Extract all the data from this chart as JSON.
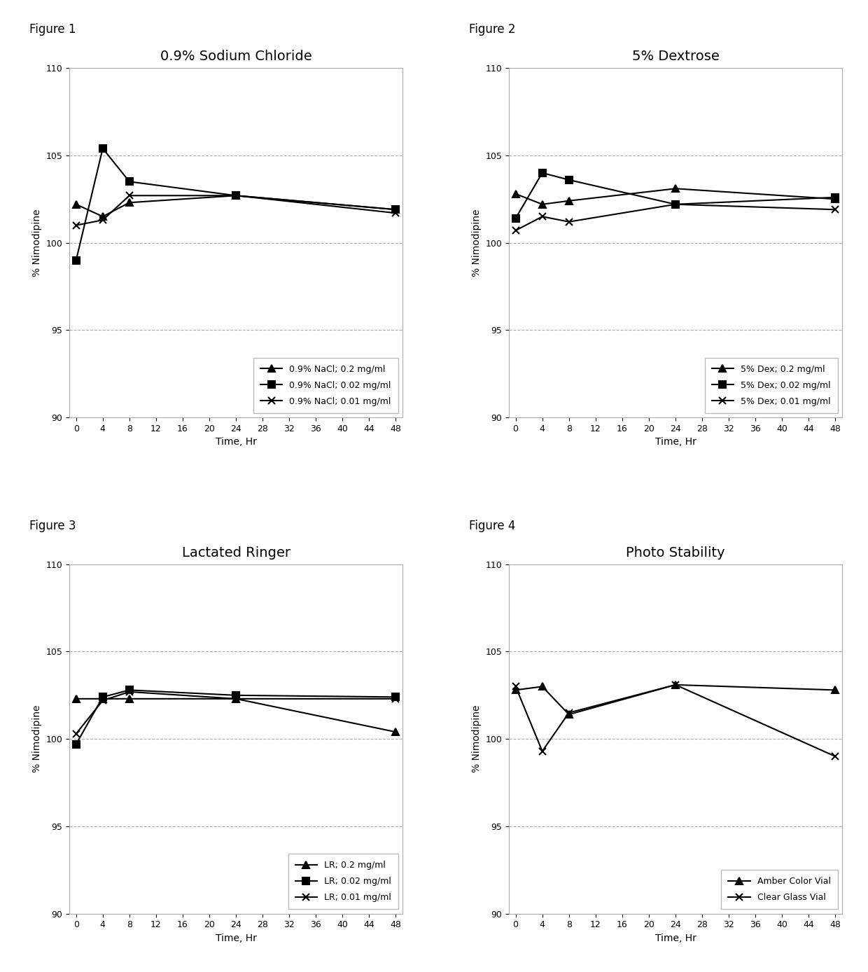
{
  "fig1": {
    "title": "0.9% Sodium Chloride",
    "series": [
      {
        "label": "0.9% NaCl; 0.2 mg/ml",
        "x": [
          0,
          4,
          8,
          24,
          48
        ],
        "y": [
          102.2,
          101.5,
          102.3,
          102.7,
          101.9
        ],
        "marker": "^",
        "linestyle": "-"
      },
      {
        "label": "0.9% NaCl; 0.02 mg/ml",
        "x": [
          0,
          4,
          8,
          24,
          48
        ],
        "y": [
          99.0,
          105.4,
          103.5,
          102.7,
          101.9
        ],
        "marker": "s",
        "linestyle": "-"
      },
      {
        "label": "0.9% NaCl; 0.01 mg/ml",
        "x": [
          0,
          4,
          8,
          24,
          48
        ],
        "y": [
          101.0,
          101.3,
          102.7,
          102.7,
          101.7
        ],
        "marker": "x",
        "linestyle": "-"
      }
    ]
  },
  "fig2": {
    "title": "5% Dextrose",
    "series": [
      {
        "label": "5% Dex; 0.2 mg/ml",
        "x": [
          0,
          4,
          8,
          24,
          48
        ],
        "y": [
          102.8,
          102.2,
          102.4,
          103.1,
          102.5
        ],
        "marker": "^",
        "linestyle": "-"
      },
      {
        "label": "5% Dex; 0.02 mg/ml",
        "x": [
          0,
          4,
          8,
          24,
          48
        ],
        "y": [
          101.4,
          104.0,
          103.6,
          102.2,
          102.6
        ],
        "marker": "s",
        "linestyle": "-"
      },
      {
        "label": "5% Dex; 0.01 mg/ml",
        "x": [
          0,
          4,
          8,
          24,
          48
        ],
        "y": [
          100.7,
          101.5,
          101.2,
          102.2,
          101.9
        ],
        "marker": "x",
        "linestyle": "-"
      }
    ]
  },
  "fig3": {
    "title": "Lactated Ringer",
    "series": [
      {
        "label": "LR; 0.2 mg/ml",
        "x": [
          0,
          4,
          8,
          24,
          48
        ],
        "y": [
          102.3,
          102.3,
          102.3,
          102.3,
          100.4
        ],
        "marker": "^",
        "linestyle": "-"
      },
      {
        "label": "LR; 0.02 mg/ml",
        "x": [
          0,
          4,
          8,
          24,
          48
        ],
        "y": [
          99.7,
          102.4,
          102.8,
          102.5,
          102.4
        ],
        "marker": "s",
        "linestyle": "-"
      },
      {
        "label": "LR; 0.01 mg/ml",
        "x": [
          0,
          4,
          8,
          24,
          48
        ],
        "y": [
          100.3,
          102.2,
          102.7,
          102.3,
          102.3
        ],
        "marker": "x",
        "linestyle": "-"
      }
    ]
  },
  "fig4": {
    "title": "Photo Stability",
    "series": [
      {
        "label": "Amber Color Vial",
        "x": [
          0,
          4,
          8,
          24,
          48
        ],
        "y": [
          102.8,
          103.0,
          101.4,
          103.1,
          102.8
        ],
        "marker": "^",
        "linestyle": "-"
      },
      {
        "label": "Clear Glass Vial",
        "x": [
          0,
          4,
          8,
          24,
          48
        ],
        "y": [
          103.0,
          99.3,
          101.5,
          103.1,
          99.0
        ],
        "marker": "x",
        "linestyle": "-"
      }
    ]
  },
  "ylim": [
    90,
    110
  ],
  "yticks": [
    90,
    95,
    100,
    105,
    110
  ],
  "xlim": [
    -1,
    49
  ],
  "xticks": [
    0,
    4,
    8,
    12,
    16,
    20,
    24,
    28,
    32,
    36,
    40,
    44,
    48
  ],
  "xlabel": "Time, Hr",
  "ylabel": "% Nimodipine",
  "color": "#000000",
  "grid_color": "#aaaaaa",
  "grid_style": "--",
  "figure_labels": [
    "Figure 1",
    "Figure 2",
    "Figure 3",
    "Figure 4"
  ],
  "bg_color": "#ffffff",
  "legend_fontsize": 9,
  "title_fontsize": 14,
  "axis_fontsize": 10,
  "tick_fontsize": 9,
  "linewidth": 1.5,
  "markersize": 7
}
